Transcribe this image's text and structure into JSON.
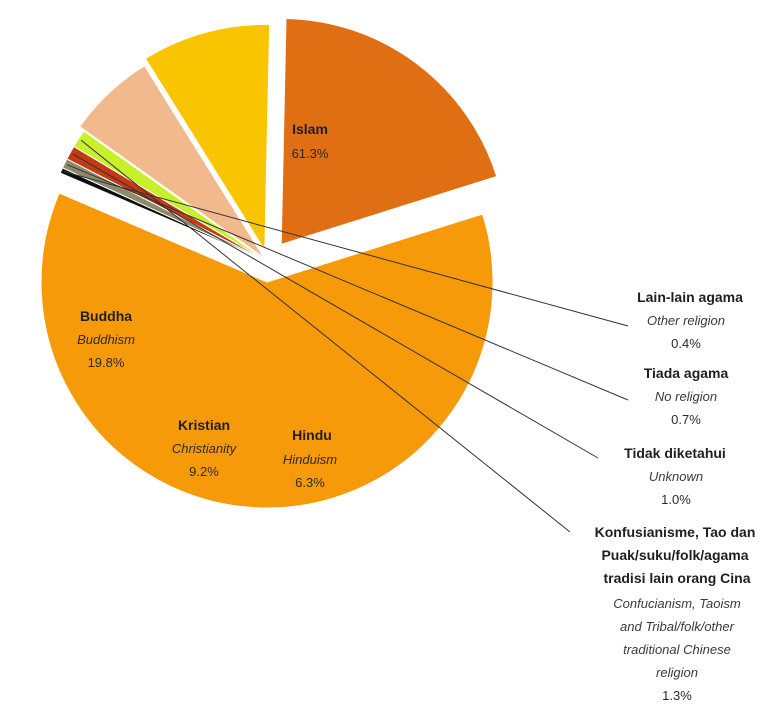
{
  "chart_data": {
    "type": "pie",
    "title": "",
    "slices": [
      {
        "name": "Islam",
        "en": "",
        "value": 61.3,
        "label": "61.3%",
        "color": "#F79A0A"
      },
      {
        "name": "Lain-lain agama",
        "en": "Other religion",
        "value": 0.4,
        "label": "0.4%",
        "color": "#0F0F0F"
      },
      {
        "name": "Tiada agama",
        "en": "No religion",
        "value": 0.7,
        "label": "0.7%",
        "color": "#8C8A6A"
      },
      {
        "name": "Tidak diketahui",
        "en": "Unknown",
        "value": 1.0,
        "label": "1.0%",
        "color": "#C43A12"
      },
      {
        "name": "Konfusianisme, Tao dan Puak/suku/folk/agama tradisi lain orang Cina",
        "en": "Confucianism, Taoism and Tribal/folk/other traditional Chinese religion",
        "value": 1.3,
        "label": "1.3%",
        "color": "#C8F02A"
      },
      {
        "name": "Hindu",
        "en": "Hinduism",
        "value": 6.3,
        "label": "6.3%",
        "color": "#F2B98D"
      },
      {
        "name": "Kristian",
        "en": "Christianity",
        "value": 9.2,
        "label": "9.2%",
        "color": "#F8C500"
      },
      {
        "name": "Buddha",
        "en": "Buddhism",
        "value": 19.8,
        "label": "19.8%",
        "color": "#E06E12"
      }
    ],
    "callouts": {
      "other": {
        "lines": [
          "Lain-lain agama"
        ],
        "en_lines": [
          "Other religion"
        ],
        "pct": "0.4%"
      },
      "none": {
        "lines": [
          "Tiada agama"
        ],
        "en_lines": [
          "No religion"
        ],
        "pct": "0.7%"
      },
      "unknown": {
        "lines": [
          "Tidak diketahui"
        ],
        "en_lines": [
          "Unknown"
        ],
        "pct": "1.0%"
      },
      "chinese": {
        "lines": [
          "Konfusianisme, Tao dan",
          "Puak/suku/folk/agama",
          "tradisi lain orang Cina"
        ],
        "en_lines": [
          "Confucianism, Taoism",
          "and Tribal/folk/other",
          "traditional Chinese",
          "religion"
        ],
        "pct": "1.3%"
      }
    }
  }
}
